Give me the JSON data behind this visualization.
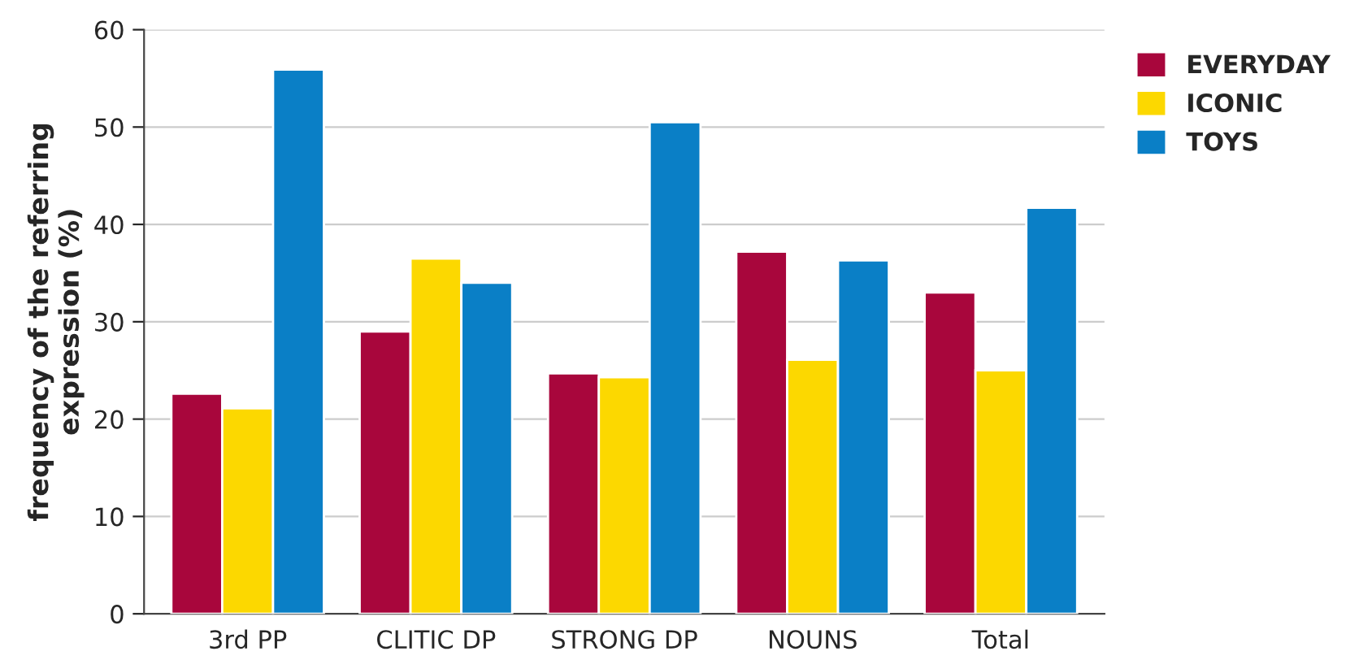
{
  "chart_data": {
    "type": "bar",
    "ylabel": "frequency of the referring\nexpression (%)",
    "categories": [
      "3rd PP",
      "CLITIC DP",
      "STRONG DP",
      "NOUNS",
      "Total"
    ],
    "series": [
      {
        "name": "EVERYDAY",
        "color": "#a8063c",
        "values": [
          22.6,
          29.0,
          24.7,
          37.2,
          33.0
        ]
      },
      {
        "name": "ICONIC",
        "color": "#fcd800",
        "values": [
          21.1,
          36.5,
          24.3,
          26.1,
          25.0
        ]
      },
      {
        "name": "TOYS",
        "color": "#0a7fc6",
        "values": [
          55.9,
          34.0,
          50.5,
          36.3,
          41.7
        ]
      }
    ],
    "ylim": [
      0,
      60
    ],
    "yticks": [
      0,
      10,
      20,
      30,
      40,
      50,
      60
    ],
    "grid": "y",
    "legend": "top right"
  }
}
